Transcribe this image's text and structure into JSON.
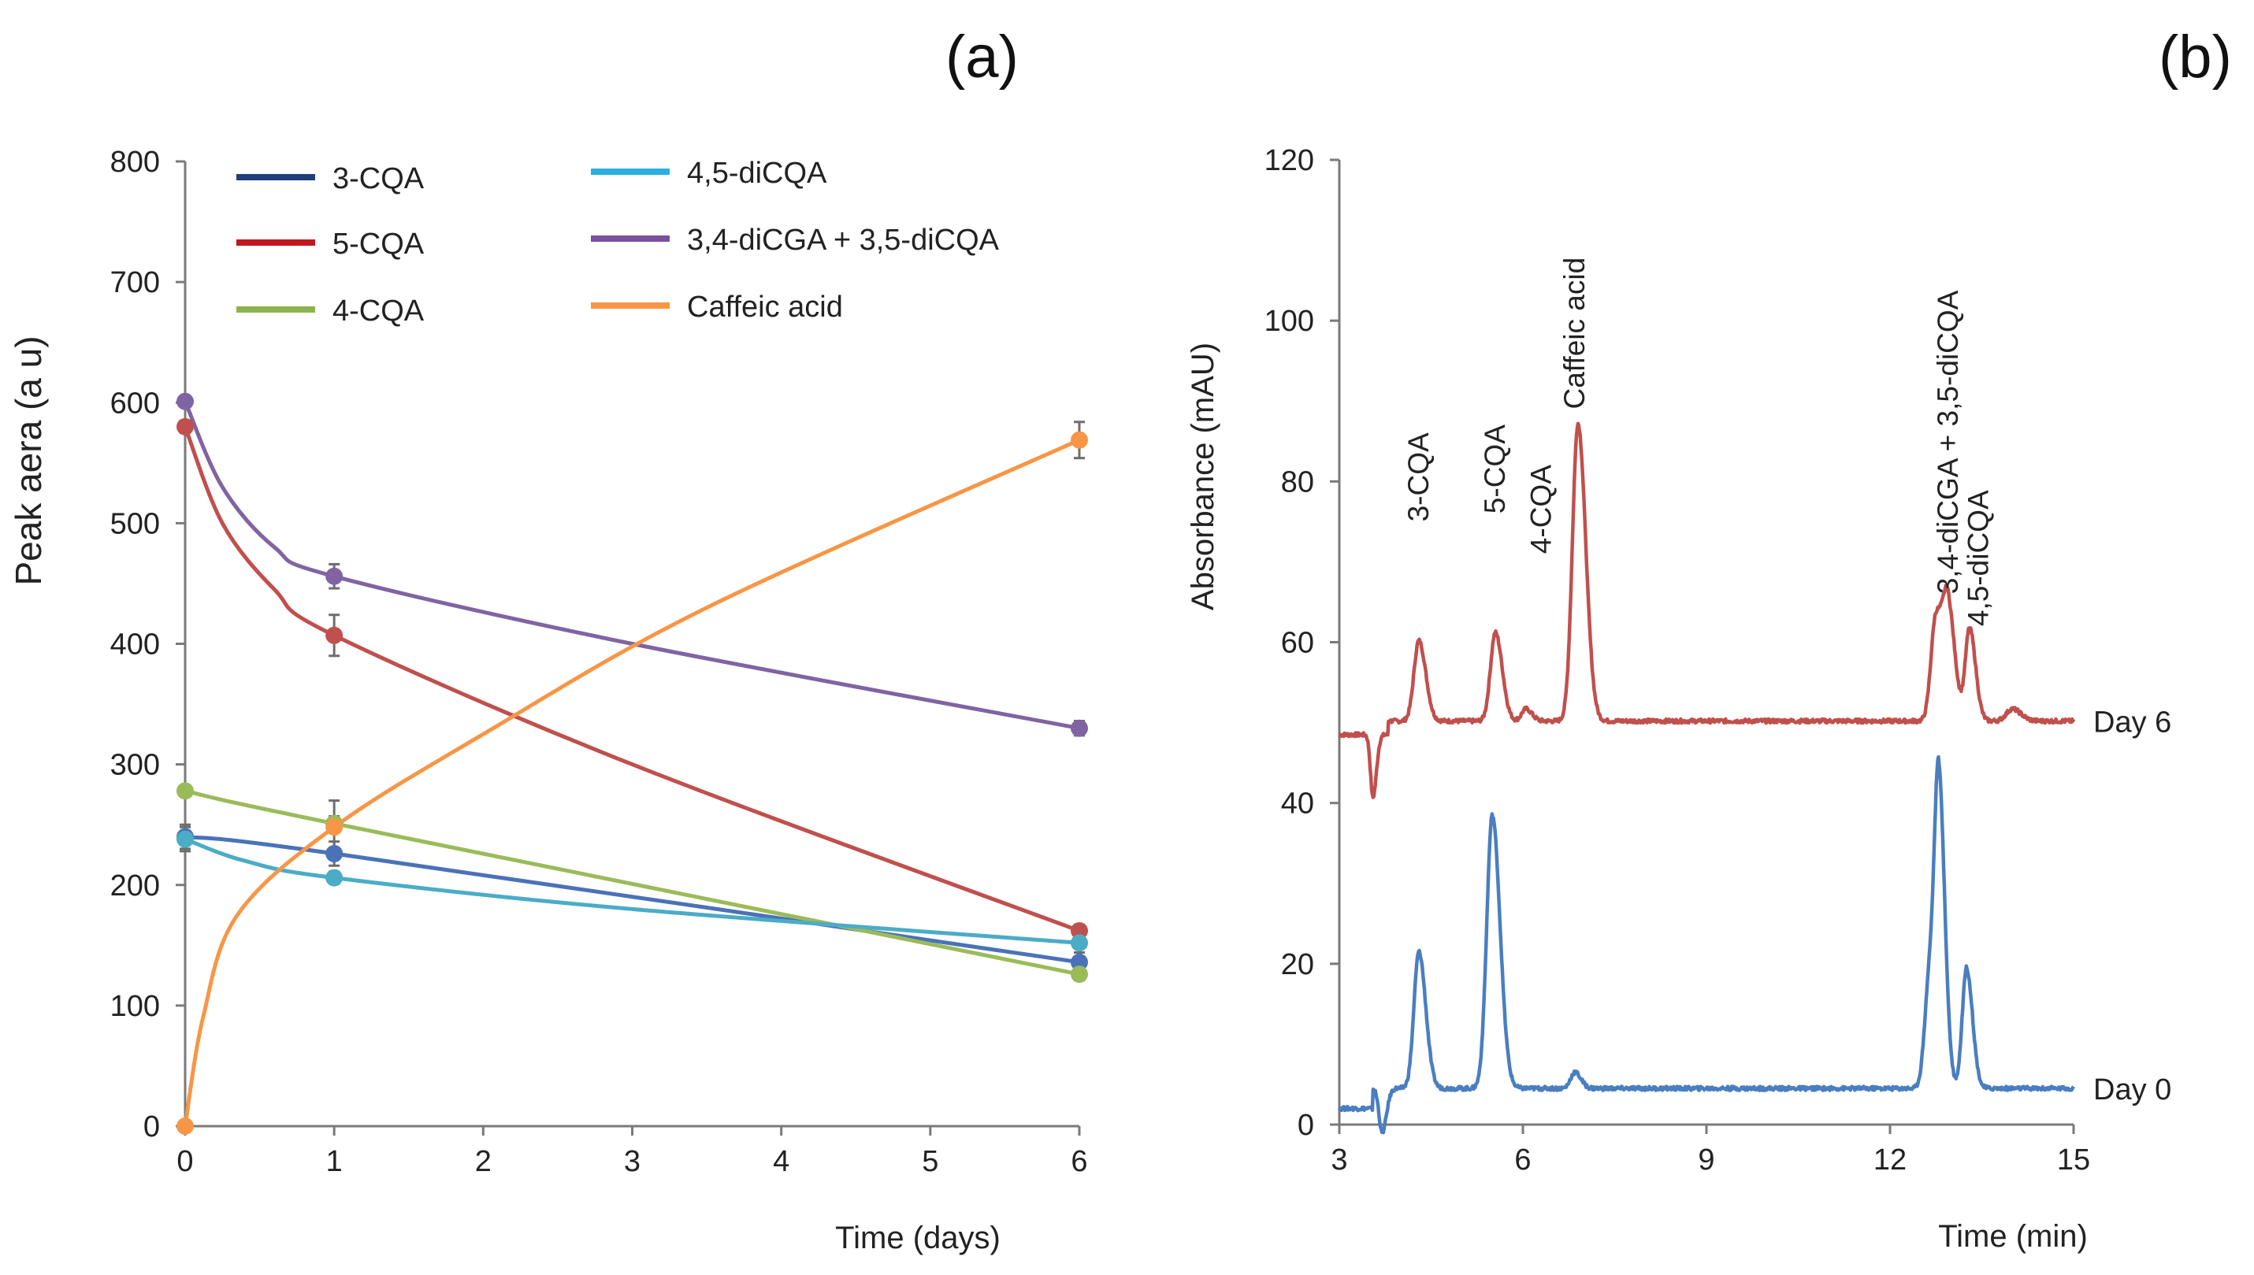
{
  "chart_data": [
    {
      "panel": "(a)",
      "type": "line",
      "xlabel": "Time (days)",
      "ylabel": "Peak aera (a u)",
      "ylim": [
        0,
        800
      ],
      "yticks": [
        0,
        100,
        200,
        300,
        400,
        500,
        600,
        700,
        800
      ],
      "xticks": [
        0,
        1,
        2,
        3,
        4,
        5,
        6
      ],
      "series": [
        {
          "name": "3-CQA",
          "legend_color": "#1f3f7a",
          "color": "#4a72b8",
          "x": [
            0,
            1,
            6
          ],
          "y": [
            240,
            226,
            136
          ],
          "err": [
            10,
            10,
            8
          ]
        },
        {
          "name": "5-CQA",
          "legend_color": "#c0181e",
          "color": "#c0504d",
          "x": [
            0,
            1,
            6
          ],
          "y": [
            580,
            407,
            162
          ],
          "err": [
            5,
            17,
            5
          ]
        },
        {
          "name": "4-CQA",
          "legend_color": "#8db350",
          "color": "#9bbb59",
          "x": [
            0,
            1,
            6
          ],
          "y": [
            278,
            251,
            126
          ],
          "err": [
            4,
            6,
            5
          ]
        },
        {
          "name": "4,5-diCQA",
          "legend_color": "#2ab0de",
          "color": "#4bacc6",
          "x": [
            0,
            1,
            6
          ],
          "y": [
            238,
            206,
            152
          ],
          "err": [
            10,
            5,
            4
          ]
        },
        {
          "name": "3,4-diCGA + 3,5-diCQA",
          "legend_color": "#7c4fa0",
          "color": "#8064a2",
          "x": [
            0,
            1,
            6
          ],
          "y": [
            601,
            456,
            330
          ],
          "err": [
            4,
            10,
            6
          ]
        },
        {
          "name": "Caffeic acid",
          "legend_color": "#f79646",
          "color": "#f79646",
          "x": [
            0,
            1,
            6
          ],
          "y": [
            0,
            248,
            569
          ],
          "err": [
            0,
            22,
            15
          ]
        }
      ]
    },
    {
      "panel": "(b)",
      "type": "line",
      "xlabel": "Time (min)",
      "ylabel": "Absorbance (mAU)",
      "xlim": [
        3,
        15
      ],
      "ylim": [
        0,
        120
      ],
      "xticks": [
        3,
        6,
        9,
        12,
        15
      ],
      "yticks": [
        0,
        20,
        40,
        60,
        80,
        100,
        120
      ],
      "series": [
        {
          "name": "Day 6",
          "label": "Day 6",
          "color": "#c0504d",
          "baseline": 50.2,
          "peaks": [
            [
              3.55,
              -7.8,
              0.04
            ],
            [
              4.3,
              10,
              0.08
            ],
            [
              5.55,
              11,
              0.08
            ],
            [
              6.05,
              1.5,
              0.07
            ],
            [
              6.9,
              37,
              0.09
            ],
            [
              12.75,
              13,
              0.08
            ],
            [
              12.95,
              13.5,
              0.08
            ],
            [
              13.3,
              11.5,
              0.07
            ],
            [
              14.0,
              1.5,
              0.1
            ]
          ]
        },
        {
          "name": "Day 0",
          "label": "Day  0",
          "color": "#4a7ebf",
          "baseline": 4.5,
          "peaks": [
            [
              3.7,
              -5.5,
              0.05
            ],
            [
              4.3,
              17,
              0.08
            ],
            [
              5.5,
              34,
              0.09
            ],
            [
              6.85,
              2,
              0.07
            ],
            [
              12.65,
              14,
              0.08
            ],
            [
              12.8,
              35,
              0.07
            ],
            [
              13.25,
              15,
              0.07
            ]
          ]
        }
      ],
      "peak_labels": [
        "3-CQA",
        "5-CQA",
        "4-CQA",
        "Caffeic acid",
        "3,4-diCGA + 3,5-diCQA",
        "4,5-diCQA"
      ]
    }
  ]
}
